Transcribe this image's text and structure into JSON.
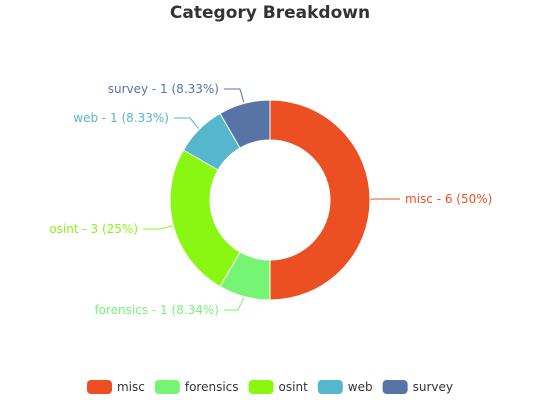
{
  "chart_data": {
    "type": "pie",
    "variant": "donut",
    "title": "Category Breakdown",
    "categories": [
      "misc",
      "forensics",
      "osint",
      "web",
      "survey"
    ],
    "values": [
      6,
      1,
      3,
      1,
      1
    ],
    "slice_labels": [
      "misc - 6 (50%)",
      "forensics - 1 (8.34%)",
      "osint - 3 (25%)",
      "web - 1 (8.33%)",
      "survey - 1 (8.33%)"
    ],
    "colors": [
      "#ec5022",
      "#76f575",
      "#8af712",
      "#55b7cc",
      "#5873a6"
    ],
    "legend": {
      "position": "bottom",
      "items": [
        "misc",
        "forensics",
        "osint",
        "web",
        "survey"
      ]
    }
  }
}
